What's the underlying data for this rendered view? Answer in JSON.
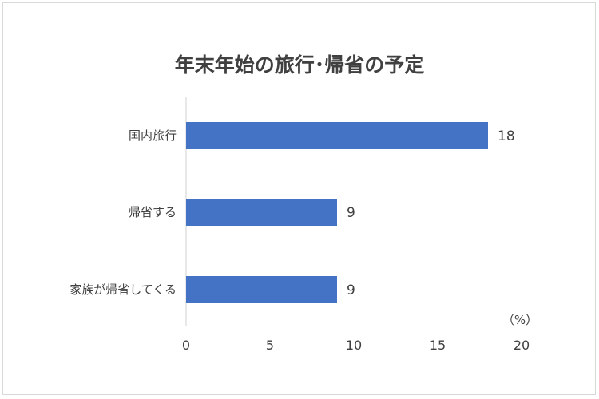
{
  "chart_data": {
    "type": "bar",
    "orientation": "horizontal",
    "title": "年末年始の旅行･帰省の予定",
    "categories": [
      "国内旅行",
      "帰省する",
      "家族が帰省してくる"
    ],
    "values": [
      18,
      9,
      9
    ],
    "xlim": [
      0,
      20
    ],
    "xticks": [
      0,
      5,
      10,
      15,
      20
    ],
    "unit_label": "（%）",
    "bar_color": "#4472c4",
    "grid": false,
    "legend": "none"
  }
}
